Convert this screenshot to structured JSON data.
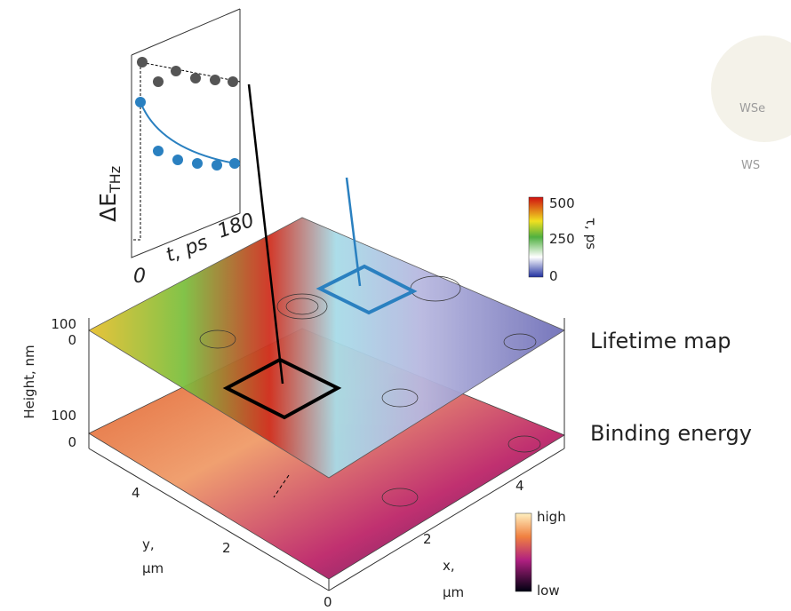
{
  "inset": {
    "y_label_main": "ΔE",
    "y_label_sub": "THz",
    "x_label": "t, ps",
    "x_ticks": [
      "0",
      "180"
    ]
  },
  "colorbar_lifetime": {
    "ticks": [
      "500",
      "250",
      "0"
    ],
    "label": "τ, ps"
  },
  "colorbar_energy": {
    "ticks": [
      "high",
      "low"
    ]
  },
  "layers": [
    "Lifetime map",
    "Binding energy"
  ],
  "height_axis": {
    "label": "Height, nm",
    "ticks_top": [
      "100",
      "0"
    ],
    "ticks_bottom": [
      "100",
      "0"
    ]
  },
  "y_axis": {
    "label_line1": "y,",
    "label_line2": "μm",
    "ticks": [
      "4",
      "2"
    ]
  },
  "x_axis": {
    "label_line1": "x,",
    "label_line2": "μm",
    "ticks": [
      "2",
      "4"
    ]
  },
  "origin": "0",
  "faded": [
    "WSe",
    "WS"
  ]
}
